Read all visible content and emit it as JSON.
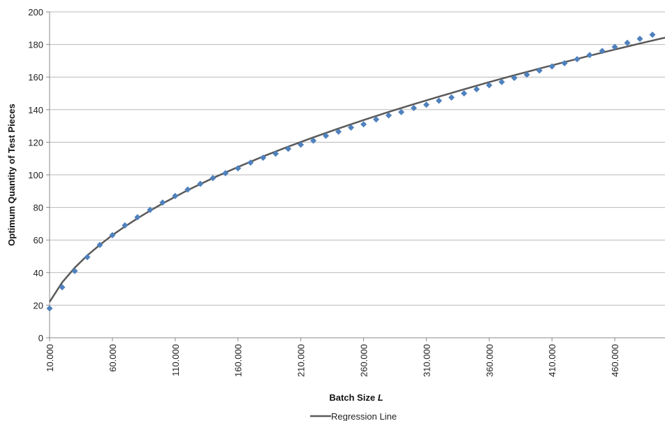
{
  "chart_data": {
    "type": "scatter",
    "title": "",
    "xlabel": "Batch Size",
    "xlabel_var": "L",
    "ylabel": "Optimum Quantity of Test Pieces",
    "xlim": [
      10000,
      500000
    ],
    "ylim": [
      0,
      200
    ],
    "x_ticks": [
      10000,
      60000,
      110000,
      160000,
      210000,
      260000,
      310000,
      360000,
      410000,
      460000
    ],
    "x_tick_labels": [
      "10.000",
      "60.000",
      "110.000",
      "160.000",
      "210.000",
      "260.000",
      "310.000",
      "360.000",
      "410.000",
      "460.000"
    ],
    "y_ticks": [
      0,
      20,
      40,
      60,
      80,
      100,
      120,
      140,
      160,
      180,
      200
    ],
    "y_tick_labels": [
      "0",
      "20",
      "40",
      "60",
      "80",
      "100",
      "120",
      "140",
      "160",
      "180",
      "200"
    ],
    "grid": "horizontal",
    "legend_position": "bottom",
    "series": [
      {
        "kind": "points",
        "color": "#4f81bd",
        "marker": "diamond",
        "x": [
          10000,
          20000,
          30000,
          40000,
          50000,
          60000,
          70000,
          80000,
          90000,
          100000,
          110000,
          120000,
          130000,
          140000,
          150000,
          160000,
          170000,
          180000,
          190000,
          200000,
          210000,
          220000,
          230000,
          240000,
          250000,
          260000,
          270000,
          280000,
          290000,
          300000,
          310000,
          320000,
          330000,
          340000,
          350000,
          360000,
          370000,
          380000,
          390000,
          400000,
          410000,
          420000,
          430000,
          440000,
          450000,
          460000,
          470000,
          480000,
          490000
        ],
        "y": [
          18,
          31,
          41,
          49.5,
          57,
          63,
          69,
          74,
          78.5,
          83,
          87,
          91,
          94.5,
          98,
          101,
          104,
          107.5,
          110.5,
          113,
          116,
          118.5,
          121,
          124,
          126.5,
          129,
          131,
          134,
          136.5,
          138.5,
          141,
          143,
          145.5,
          147.5,
          150,
          152.5,
          155,
          157,
          159.5,
          161.5,
          164,
          166.5,
          168.5,
          171,
          173.5,
          176,
          178.5,
          181,
          183.5,
          186
        ]
      },
      {
        "name": "Regression Line",
        "kind": "line",
        "color": "#5a5a5a",
        "x": [
          10000,
          20000,
          30000,
          40000,
          50000,
          60000,
          70000,
          80000,
          90000,
          100000,
          120000,
          140000,
          160000,
          180000,
          200000,
          220000,
          240000,
          260000,
          280000,
          300000,
          320000,
          340000,
          360000,
          380000,
          400000,
          420000,
          440000,
          460000,
          480000,
          500000
        ],
        "y": [
          22,
          34,
          43,
          50.5,
          57,
          63,
          68.3,
          73.3,
          78,
          82.4,
          90.6,
          98,
          104.8,
          111.3,
          117.3,
          123,
          128.4,
          133.6,
          138.6,
          143.4,
          148,
          152.5,
          156.9,
          161.1,
          165.2,
          169.2,
          173.1,
          176.9,
          180.6,
          184.2
        ]
      }
    ]
  }
}
